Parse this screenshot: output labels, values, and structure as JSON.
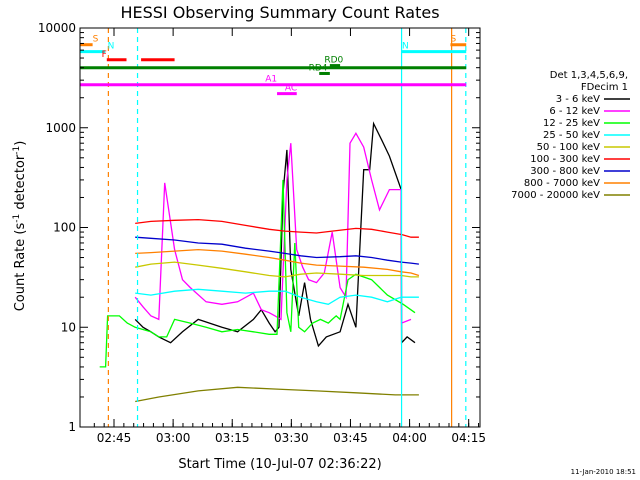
{
  "chart_data": {
    "type": "line",
    "title": "HESSI Observing Summary Count Rates",
    "xlabel": "Start Time (10-Jul-07 02:36:22)",
    "ylabel_main": "Count Rate (s",
    "ylabel_sup": "-1",
    "ylabel_mid": " detector",
    "ylabel_sup2": "-1",
    "ylabel_end": ")",
    "y_scale": "log",
    "ylim": [
      1,
      10000
    ],
    "xlim_minutes": [
      0,
      101.5
    ],
    "x_ticks": [
      {
        "label": "02:45",
        "min": 8.63
      },
      {
        "label": "03:00",
        "min": 23.63
      },
      {
        "label": "03:15",
        "min": 38.63
      },
      {
        "label": "03:30",
        "min": 53.63
      },
      {
        "label": "03:45",
        "min": 68.63
      },
      {
        "label": "04:00",
        "min": 83.63
      },
      {
        "label": "04:15",
        "min": 98.63
      }
    ],
    "y_ticks": [
      {
        "label": "1",
        "value": 1
      },
      {
        "label": "10",
        "value": 10
      },
      {
        "label": "100",
        "value": 100
      },
      {
        "label": "1000",
        "value": 1000
      },
      {
        "label": "10000",
        "value": 10000
      }
    ],
    "legend": {
      "header": [
        "Det 1,3,4,5,6,9,",
        "FDecim 1"
      ],
      "placement": "right"
    },
    "series": [
      {
        "name": "3 - 6 keV",
        "color": "#000000",
        "x": [
          0,
          5,
          10,
          14,
          16,
          18,
          20,
          23,
          26,
          30,
          36,
          40,
          44,
          46,
          48,
          49.5,
          50.5,
          51.5,
          52.5,
          53.5,
          54.5,
          55.5,
          57,
          58.5,
          60.5,
          62.5,
          66,
          68,
          70,
          72,
          73.5,
          74.5,
          76.5,
          78.5,
          81.5,
          81.6,
          83,
          85,
          86
        ],
        "values": [
          null,
          null,
          null,
          12,
          10,
          9,
          8,
          7,
          9,
          12,
          10,
          9,
          12,
          15,
          11,
          9,
          10,
          220,
          600,
          38,
          22,
          13,
          28,
          12,
          6.5,
          8,
          9,
          17,
          10,
          380,
          380,
          1100,
          760,
          520,
          240,
          7,
          8,
          7,
          null
        ]
      },
      {
        "name": "6 - 12 keV",
        "color": "#ff00ff",
        "x": [
          14,
          16,
          18,
          20,
          21.5,
          24,
          26,
          28,
          32,
          36,
          40,
          44,
          46,
          48,
          49.5,
          51,
          52.5,
          53.5,
          55,
          56.5,
          58,
          60,
          62,
          64,
          66,
          67.5,
          68.5,
          70,
          72,
          74,
          76,
          78.5,
          81.5,
          81.6,
          84
        ],
        "values": [
          20,
          16,
          13,
          12,
          280,
          60,
          30,
          25,
          18,
          17,
          18,
          22,
          15,
          14,
          13,
          12,
          300,
          700,
          60,
          40,
          30,
          28,
          35,
          90,
          25,
          20,
          700,
          880,
          640,
          300,
          150,
          240,
          240,
          11,
          12
        ]
      },
      {
        "name": "12 - 25 keV",
        "color": "#00ff00",
        "x": [
          5,
          6.5,
          7,
          10,
          12,
          14,
          18,
          20,
          22,
          24,
          28,
          32,
          36,
          40,
          44,
          48,
          50,
          51.5,
          52.5,
          53.5,
          54.5,
          55.5,
          57,
          59,
          61,
          63,
          64,
          65,
          66,
          68,
          70,
          74,
          78,
          82,
          85,
          86
        ],
        "values": [
          4,
          4,
          13,
          13,
          11,
          10,
          9,
          8,
          8,
          12,
          11,
          10,
          9,
          9.5,
          9,
          8.5,
          8.5,
          300,
          14,
          9,
          70,
          10,
          9,
          11,
          12,
          11,
          12,
          13,
          12,
          30,
          34,
          30,
          21,
          17,
          14,
          null
        ]
      },
      {
        "name": "25 - 50 keV",
        "color": "#00ffff",
        "x": [
          14,
          18,
          24,
          30,
          36,
          42,
          48,
          52,
          56,
          60,
          63,
          66,
          70,
          74,
          78,
          81.5,
          83,
          86
        ],
        "values": [
          22,
          21,
          23,
          24,
          23,
          22,
          23,
          23,
          20,
          18,
          17,
          20,
          21,
          20,
          18,
          20,
          20,
          20
        ]
      },
      {
        "name": "50 - 100 keV",
        "color": "#c8c800",
        "x": [
          14,
          18,
          24,
          30,
          36,
          42,
          48,
          52,
          56,
          60,
          66,
          72,
          78,
          81.5,
          84,
          86
        ],
        "values": [
          40,
          43,
          45,
          42,
          39,
          36,
          33,
          32,
          34,
          35,
          34,
          33,
          33,
          33,
          32,
          32
        ]
      },
      {
        "name": "100 - 300 keV",
        "color": "#ff0000",
        "x": [
          14,
          18,
          24,
          30,
          36,
          42,
          48,
          52,
          56,
          60,
          64,
          70,
          74,
          78,
          81.5,
          81.6,
          84,
          86
        ],
        "values": [
          110,
          115,
          118,
          120,
          115,
          105,
          96,
          92,
          90,
          88,
          92,
          98,
          96,
          90,
          85,
          85,
          80,
          80
        ]
      },
      {
        "name": "300 - 800 keV",
        "color": "#0000cc",
        "x": [
          14,
          18,
          24,
          30,
          36,
          42,
          48,
          52,
          56,
          60,
          66,
          70,
          74,
          78,
          81.5,
          84,
          86
        ],
        "values": [
          80,
          78,
          75,
          70,
          68,
          62,
          58,
          55,
          52,
          50,
          51,
          52,
          50,
          47,
          45,
          44,
          43
        ]
      },
      {
        "name": "800 - 7000 keV",
        "color": "#ff8000",
        "x": [
          14,
          18,
          24,
          30,
          36,
          42,
          48,
          52,
          56,
          60,
          66,
          72,
          78,
          81.5,
          84,
          86
        ],
        "values": [
          55,
          56,
          58,
          60,
          58,
          54,
          50,
          47,
          44,
          42,
          41,
          40,
          38,
          36,
          35,
          33
        ]
      },
      {
        "name": "7000 - 20000 keV",
        "color": "#808000",
        "x": [
          14,
          20,
          30,
          40,
          50,
          60,
          70,
          80,
          86
        ],
        "values": [
          1.8,
          2,
          2.3,
          2.5,
          2.4,
          2.3,
          2.2,
          2.1,
          2.1
        ]
      }
    ],
    "flag_lines": [
      {
        "label": "S",
        "color": "#ff8000",
        "x": [
          0,
          3.2
        ],
        "y": 6800,
        "label_at": 3.2
      },
      {
        "label": "S",
        "color": "#ff8000",
        "x": [
          94,
          98
        ],
        "y": 6800
      },
      {
        "label": "N",
        "color": "#00ffff",
        "x": [
          0,
          6.4
        ],
        "y": 5800,
        "label_at": 7
      },
      {
        "label": "N",
        "color": "#00ffff",
        "x": [
          81.7,
          98
        ],
        "y": 5800
      },
      {
        "label": "F",
        "color": "#ff0000",
        "x": [
          6.8,
          11.8
        ],
        "y": 4800,
        "label_at": 5.5
      },
      {
        "label": "",
        "color": "#ff0000",
        "x": [
          15.5,
          24
        ],
        "y": 4800
      },
      {
        "label": "",
        "color": "#008000",
        "x": [
          0,
          98
        ],
        "y": 4000
      },
      {
        "label": "A1",
        "color": "#ff00ff",
        "x": [
          0,
          98
        ],
        "y": 2700,
        "label_at": 47
      },
      {
        "label": "AC",
        "color": "#ff00ff",
        "x": [
          50,
          55
        ],
        "y": 2200,
        "label_at": 52
      },
      {
        "label": "RD4",
        "color": "#008000",
        "x": [
          60.7,
          63.4
        ],
        "y": 3500,
        "label_at": 58
      },
      {
        "label": "RD0",
        "color": "#008000",
        "x": [
          63.4,
          66
        ],
        "y": 4200,
        "label_at": 62
      }
    ],
    "vlines": [
      {
        "min": 7.2,
        "color": "#ff8000",
        "style": "dashed"
      },
      {
        "min": 14.6,
        "color": "#00ffff",
        "style": "dashed"
      },
      {
        "min": 81.6,
        "color": "#00ffff",
        "style": "solid"
      },
      {
        "min": 94.3,
        "color": "#ff8000",
        "style": "solid"
      },
      {
        "min": 97.9,
        "color": "#00ffff",
        "style": "dashed"
      }
    ],
    "footer_date": "11-Jan-2010 18:51"
  }
}
